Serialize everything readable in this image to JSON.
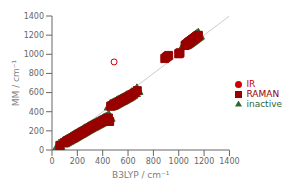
{
  "chart_data": {
    "type": "scatter",
    "xlabel": "B3LYP / cm⁻¹",
    "ylabel": "MM / cm⁻¹",
    "xlim": [
      0,
      1400
    ],
    "ylim": [
      0,
      1400
    ],
    "xticks": [
      0,
      200,
      400,
      600,
      800,
      1000,
      1200,
      1400
    ],
    "yticks": [
      0,
      200,
      400,
      600,
      800,
      1000,
      1200,
      1400
    ],
    "grid": false,
    "legend": "right",
    "series": [
      {
        "name": "inactive",
        "color": "#336633",
        "marker": "triangle",
        "values": [
          [
            55,
            40
          ],
          [
            90,
            70
          ],
          [
            105,
            80
          ],
          [
            120,
            92
          ],
          [
            135,
            102
          ],
          [
            150,
            115
          ],
          [
            160,
            122
          ],
          [
            170,
            130
          ],
          [
            180,
            138
          ],
          [
            190,
            146
          ],
          [
            200,
            155
          ],
          [
            210,
            162
          ],
          [
            220,
            168
          ],
          [
            230,
            176
          ],
          [
            240,
            183
          ],
          [
            250,
            192
          ],
          [
            260,
            200
          ],
          [
            270,
            208
          ],
          [
            280,
            215
          ],
          [
            290,
            222
          ],
          [
            300,
            230
          ],
          [
            310,
            238
          ],
          [
            320,
            244
          ],
          [
            330,
            250
          ],
          [
            340,
            258
          ],
          [
            350,
            265
          ],
          [
            360,
            272
          ],
          [
            370,
            279
          ],
          [
            380,
            286
          ],
          [
            390,
            293
          ],
          [
            400,
            300
          ],
          [
            410,
            308
          ],
          [
            420,
            315
          ],
          [
            430,
            322
          ],
          [
            440,
            330
          ],
          [
            450,
            337
          ],
          [
            460,
            455
          ],
          [
            470,
            460
          ],
          [
            480,
            465
          ],
          [
            490,
            472
          ],
          [
            500,
            480
          ],
          [
            510,
            488
          ],
          [
            520,
            495
          ],
          [
            530,
            502
          ],
          [
            540,
            510
          ],
          [
            550,
            515
          ],
          [
            560,
            522
          ],
          [
            570,
            530
          ],
          [
            580,
            538
          ],
          [
            590,
            545
          ],
          [
            600,
            552
          ],
          [
            615,
            562
          ],
          [
            630,
            578
          ],
          [
            650,
            595
          ],
          [
            670,
            618
          ],
          [
            1050,
            1095
          ],
          [
            1055,
            1100
          ],
          [
            1060,
            1105
          ],
          [
            1065,
            1108
          ],
          [
            1070,
            1112
          ],
          [
            1075,
            1118
          ],
          [
            1080,
            1122
          ],
          [
            1085,
            1128
          ],
          [
            1090,
            1132
          ],
          [
            1095,
            1138
          ],
          [
            1100,
            1142
          ],
          [
            1105,
            1148
          ],
          [
            1110,
            1152
          ],
          [
            1115,
            1158
          ],
          [
            1120,
            1162
          ],
          [
            1125,
            1168
          ],
          [
            1130,
            1172
          ],
          [
            1135,
            1178
          ],
          [
            1140,
            1182
          ],
          [
            1145,
            1188
          ],
          [
            1150,
            1192
          ],
          [
            1155,
            1198
          ]
        ]
      },
      {
        "name": "RAMAN",
        "color": "#990000",
        "marker": "square",
        "values": [
          [
            62,
            48
          ],
          [
            95,
            75
          ],
          [
            110,
            85
          ],
          [
            125,
            97
          ],
          [
            140,
            108
          ],
          [
            155,
            118
          ],
          [
            165,
            126
          ],
          [
            175,
            134
          ],
          [
            185,
            142
          ],
          [
            195,
            150
          ],
          [
            205,
            158
          ],
          [
            215,
            165
          ],
          [
            225,
            172
          ],
          [
            235,
            180
          ],
          [
            245,
            188
          ],
          [
            255,
            196
          ],
          [
            265,
            204
          ],
          [
            275,
            212
          ],
          [
            285,
            219
          ],
          [
            295,
            227
          ],
          [
            305,
            235
          ],
          [
            315,
            242
          ],
          [
            325,
            249
          ],
          [
            335,
            256
          ],
          [
            345,
            263
          ],
          [
            355,
            270
          ],
          [
            365,
            277
          ],
          [
            375,
            284
          ],
          [
            385,
            291
          ],
          [
            395,
            298
          ],
          [
            405,
            306
          ],
          [
            415,
            313
          ],
          [
            425,
            320
          ],
          [
            435,
            327
          ],
          [
            445,
            335
          ],
          [
            455,
            298
          ],
          [
            463,
            458
          ],
          [
            473,
            463
          ],
          [
            483,
            468
          ],
          [
            493,
            475
          ],
          [
            503,
            483
          ],
          [
            513,
            490
          ],
          [
            523,
            498
          ],
          [
            533,
            505
          ],
          [
            543,
            512
          ],
          [
            553,
            518
          ],
          [
            563,
            525
          ],
          [
            573,
            533
          ],
          [
            583,
            540
          ],
          [
            593,
            547
          ],
          [
            603,
            555
          ],
          [
            618,
            565
          ],
          [
            633,
            580
          ],
          [
            653,
            597
          ],
          [
            673,
            620
          ],
          [
            890,
            955
          ],
          [
            900,
            968
          ],
          [
            910,
            978
          ],
          [
            920,
            988
          ],
          [
            1000,
            1005
          ],
          [
            1005,
            1010
          ],
          [
            1010,
            1015
          ],
          [
            1050,
            1092
          ],
          [
            1055,
            1098
          ],
          [
            1060,
            1102
          ],
          [
            1065,
            1108
          ],
          [
            1070,
            1112
          ],
          [
            1075,
            1118
          ],
          [
            1080,
            1122
          ],
          [
            1085,
            1128
          ],
          [
            1090,
            1132
          ],
          [
            1095,
            1138
          ],
          [
            1100,
            1142
          ],
          [
            1105,
            1148
          ],
          [
            1110,
            1152
          ],
          [
            1115,
            1158
          ],
          [
            1120,
            1162
          ],
          [
            1125,
            1168
          ],
          [
            1130,
            1172
          ],
          [
            1135,
            1178
          ],
          [
            1140,
            1182
          ],
          [
            1145,
            1188
          ],
          [
            1150,
            1192
          ],
          [
            1155,
            1198
          ]
        ]
      },
      {
        "name": "IR",
        "color": "#cc0000",
        "marker": "circle",
        "values": [
          [
            490,
            920
          ]
        ]
      }
    ]
  }
}
